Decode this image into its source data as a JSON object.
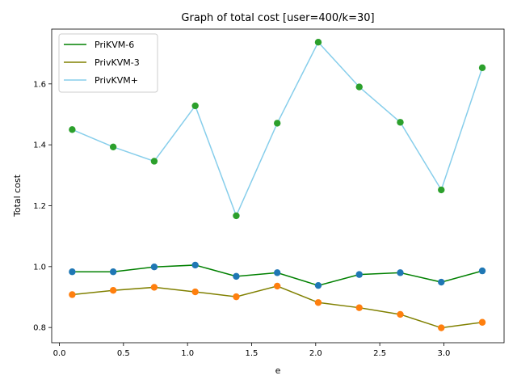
{
  "chart_data": {
    "type": "line",
    "title": "Graph of total cost [user=400/k=30]",
    "xlabel": "e",
    "ylabel": "Total cost",
    "xlim": [
      -0.06,
      3.47
    ],
    "ylim": [
      0.75,
      1.78
    ],
    "xticks": [
      0.0,
      0.5,
      1.0,
      1.5,
      2.0,
      2.5,
      3.0
    ],
    "xtick_labels": [
      "0.0",
      "0.5",
      "1.0",
      "1.5",
      "2.0",
      "2.5",
      "3.0"
    ],
    "yticks": [
      0.8,
      1.0,
      1.2,
      1.4,
      1.6
    ],
    "ytick_labels": [
      "0.8",
      "1.0",
      "1.2",
      "1.4",
      "1.6"
    ],
    "legend_position": "top-left",
    "grid": false,
    "x": [
      0.1,
      0.42,
      0.74,
      1.06,
      1.38,
      1.7,
      2.02,
      2.34,
      2.66,
      2.98,
      3.3
    ],
    "series": [
      {
        "name": "PriKVM-6",
        "line_color": "#008000",
        "marker_color": "#1f77b4",
        "values": [
          0.983,
          0.983,
          0.999,
          1.005,
          0.968,
          0.98,
          0.938,
          0.974,
          0.98,
          0.949,
          0.986
        ]
      },
      {
        "name": "PrivKVM-3",
        "line_color": "#808000",
        "marker_color": "#ff7f0e",
        "values": [
          0.908,
          0.922,
          0.932,
          0.917,
          0.901,
          0.936,
          0.882,
          0.865,
          0.843,
          0.799,
          0.817
        ]
      },
      {
        "name": "PrivKVM+",
        "line_color": "#87ceeb",
        "marker_color": "#2ca02c",
        "values": [
          1.45,
          1.393,
          1.346,
          1.528,
          1.167,
          1.471,
          1.737,
          1.59,
          1.474,
          1.252,
          1.653
        ]
      }
    ]
  }
}
